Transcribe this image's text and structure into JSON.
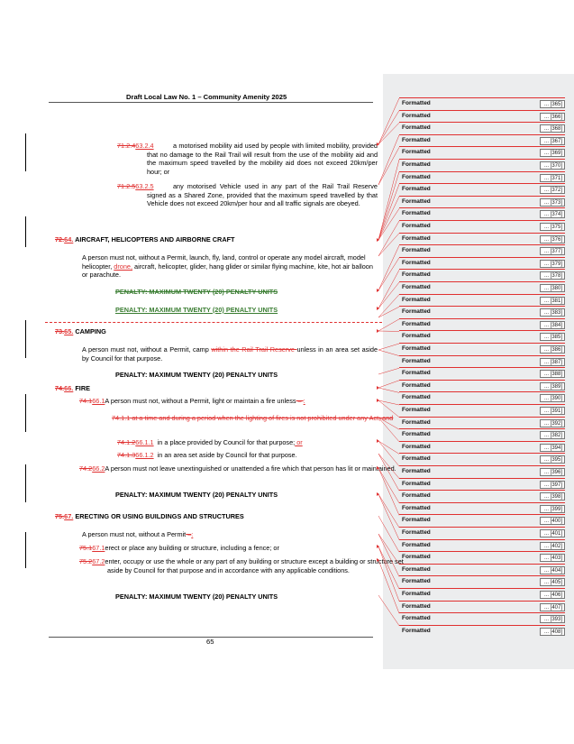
{
  "header": {
    "title": "Draft Local Law No. 1 – Community Amenity 2025"
  },
  "footer": {
    "page_number": "65"
  },
  "clauses": {
    "c1": {
      "old": "71.2.4",
      "new": "63.2.4",
      "text": "a motorised mobility aid used by people with limited mobility, provided that no damage to the Rail Trail will result from the use of the mobility aid and the maximum speed travelled by the mobility aid does not exceed 20km/per hour; or"
    },
    "c2": {
      "old": "71.2.5",
      "new": "63.2.5",
      "text": "any motorised Vehicle used in any part of the Rail Trail Reserve signed as a Shared Zone, provided that the maximum speed travelled by that Vehicle does not exceed 20km/per hour and all traffic signals are obeyed."
    },
    "s64": {
      "old": "72.",
      "new": "64.",
      "heading": "AIRCRAFT, HELICOPTERS AND AIRBORNE CRAFT",
      "body_a": "A person must not, without a Permit, launch, fly, land, control or operate any  model aircraft, model helicopter, ",
      "ins": "drone,",
      "body_b": " aircraft, helicopter, glider, hang glider or similar flying machine, kite, hot air balloon or parachute.",
      "penalty_deleted": "PENALTY: MAXIMUM TWENTY (20) PENALTY UNITS",
      "penalty": "PENALTY: MAXIMUM TWENTY (20) PENALTY UNITS"
    },
    "s65": {
      "old": "73.",
      "new": "65.",
      "heading": "CAMPING",
      "body_a": "A person must not, without a Permit, camp ",
      "del": "within the Rail Trail Reserve ",
      "body_b": "unless in an area set aside by Council for that purpose.",
      "penalty": "PENALTY: MAXIMUM TWENTY (20) PENALTY UNITS"
    },
    "s66": {
      "old": "74.",
      "new": "66.",
      "heading": "FIRE",
      "p1_old": "74.1",
      "p1_new": "66.1",
      "p1_text": "A person must not, without a Permit, light or maintain a fire unless",
      "p1_del": " – ",
      "p1_ins": ":",
      "deleted_sub": "74.1.1   at a time and during a period when the lighting of fires is not prohibited under any Act; and",
      "sub1_old": "74.1.2",
      "sub1_new": "66.1.1",
      "sub1_text": "in a place provided by Council for that purpose;",
      "sub1_ins": " or",
      "sub2_old": "74.1.3",
      "sub2_new": "66.1.2",
      "sub2_text": "in an area set aside by Council for that purpose.",
      "p2_old": "74.2",
      "p2_new": "66.2",
      "p2_text": "A person must not leave unextinguished or unattended a fire which that person has lit or maintained.",
      "penalty": "PENALTY: MAXIMUM TWENTY (20) PENALTY UNITS"
    },
    "s67": {
      "old": "75.",
      "new": "67.",
      "heading": "ERECTING OR USING BUILDINGS AND STRUCTURES",
      "intro": "A person must not, without a Permit",
      "intro_del": " –",
      "intro_ins": ":",
      "p1_old": "75.1",
      "p1_new": "67.1",
      "p1_text": "erect or place any building or structure, including a fence; or",
      "p2_old": "75.2",
      "p2_new": "67.2",
      "p2_text": "enter, occupy or use the whole or any part of any building or structure except a building or structure set aside by Council for that purpose and in accordance with any applicable conditions.",
      "penalty": "PENALTY: MAXIMUM TWENTY (20) PENALTY UNITS"
    }
  },
  "comments": {
    "label": "Formatted",
    "refs": [
      "[365]",
      "[366]",
      "[368]",
      "[367]",
      "[369]",
      "[370]",
      "[371]",
      "[372]",
      "[373]",
      "[374]",
      "[375]",
      "[376]",
      "[377]",
      "[379]",
      "[378]",
      "[380]",
      "[381]",
      "[383]",
      "[384]",
      "[385]",
      "[386]",
      "[387]",
      "[388]",
      "[389]",
      "[390]",
      "[391]",
      "[392]",
      "[382]",
      "[394]",
      "[395]",
      "[396]",
      "[397]",
      "[398]",
      "[399]",
      "[400]",
      "[401]",
      "[402]",
      "[403]",
      "[404]",
      "[405]",
      "[406]",
      "[407]",
      "[393]",
      "[408]"
    ]
  }
}
